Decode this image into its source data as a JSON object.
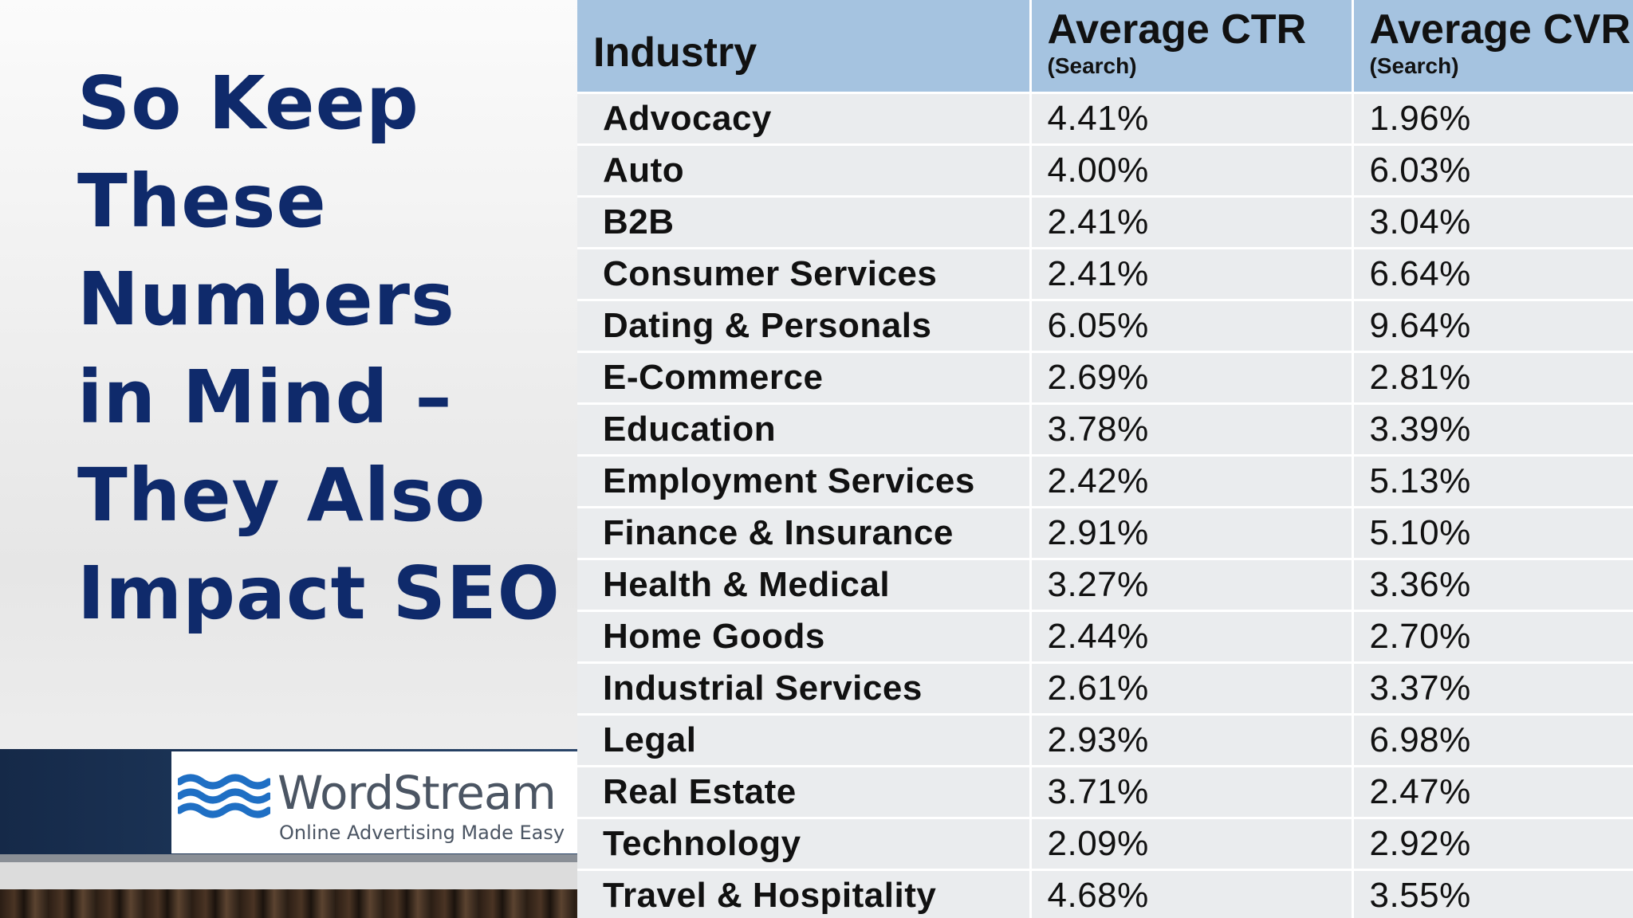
{
  "slide": {
    "title_lines": [
      "So Keep",
      "These",
      "Numbers",
      "in Mind –",
      "They Also",
      "Impact SEO"
    ]
  },
  "brand": {
    "name": "WordStream",
    "tagline": "Online Advertising Made Easy",
    "logo_icon": "waves-icon",
    "colors": {
      "wave": "#1f6fc4",
      "band": "#1c3558"
    }
  },
  "table": {
    "headers": {
      "industry": "Industry",
      "ctr": "Average CTR",
      "ctr_sub": "(Search)",
      "cvr": "Average CVR",
      "cvr_sub": "(Search)"
    },
    "rows": [
      {
        "industry": "Advocacy",
        "ctr": "4.41%",
        "cvr": "1.96%"
      },
      {
        "industry": "Auto",
        "ctr": "4.00%",
        "cvr": "6.03%"
      },
      {
        "industry": "B2B",
        "ctr": "2.41%",
        "cvr": "3.04%"
      },
      {
        "industry": "Consumer Services",
        "ctr": "2.41%",
        "cvr": "6.64%"
      },
      {
        "industry": "Dating & Personals",
        "ctr": "6.05%",
        "cvr": "9.64%"
      },
      {
        "industry": "E-Commerce",
        "ctr": "2.69%",
        "cvr": "2.81%"
      },
      {
        "industry": "Education",
        "ctr": "3.78%",
        "cvr": "3.39%"
      },
      {
        "industry": "Employment Services",
        "ctr": "2.42%",
        "cvr": "5.13%"
      },
      {
        "industry": "Finance & Insurance",
        "ctr": "2.91%",
        "cvr": "5.10%"
      },
      {
        "industry": "Health & Medical",
        "ctr": "3.27%",
        "cvr": "3.36%"
      },
      {
        "industry": "Home Goods",
        "ctr": "2.44%",
        "cvr": "2.70%"
      },
      {
        "industry": "Industrial Services",
        "ctr": "2.61%",
        "cvr": "3.37%"
      },
      {
        "industry": "Legal",
        "ctr": "2.93%",
        "cvr": "6.98%"
      },
      {
        "industry": "Real Estate",
        "ctr": "3.71%",
        "cvr": "2.47%"
      },
      {
        "industry": "Technology",
        "ctr": "2.09%",
        "cvr": "2.92%"
      },
      {
        "industry": "Travel & Hospitality",
        "ctr": "4.68%",
        "cvr": "3.55%"
      }
    ],
    "colors": {
      "header_bg": "#a5c3e0",
      "row_bg": "#eaecee",
      "grid": "#ffffff",
      "title": "#0f2a6b"
    }
  }
}
